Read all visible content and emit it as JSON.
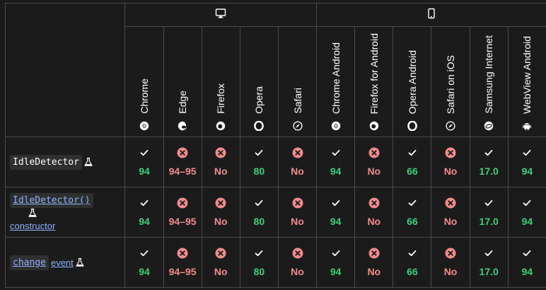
{
  "platforms": [
    {
      "name": "desktop-icon",
      "span": 5
    },
    {
      "name": "mobile-icon",
      "span": 6
    }
  ],
  "browsers": [
    {
      "label": "Chrome",
      "icon": "chrome-icon"
    },
    {
      "label": "Edge",
      "icon": "edge-icon"
    },
    {
      "label": "Firefox",
      "icon": "firefox-icon"
    },
    {
      "label": "Opera",
      "icon": "opera-icon"
    },
    {
      "label": "Safari",
      "icon": "safari-icon"
    },
    {
      "label": "Chrome Android",
      "icon": "chrome-icon"
    },
    {
      "label": "Firefox for Android",
      "icon": "firefox-icon"
    },
    {
      "label": "Opera Android",
      "icon": "opera-icon"
    },
    {
      "label": "Safari on iOS",
      "icon": "safari-icon"
    },
    {
      "label": "Samsung Internet",
      "icon": "samsung-internet-icon"
    },
    {
      "label": "WebView Android",
      "icon": "android-icon"
    }
  ],
  "features": [
    {
      "code": "IdleDetector",
      "code_link": false,
      "suffix": "",
      "support": [
        {
          "yes": true,
          "text": "94"
        },
        {
          "yes": false,
          "text": "94–95"
        },
        {
          "yes": false,
          "text": "No"
        },
        {
          "yes": true,
          "text": "80"
        },
        {
          "yes": false,
          "text": "No"
        },
        {
          "yes": true,
          "text": "94"
        },
        {
          "yes": false,
          "text": "No"
        },
        {
          "yes": true,
          "text": "66"
        },
        {
          "yes": false,
          "text": "No"
        },
        {
          "yes": true,
          "text": "17.0"
        },
        {
          "yes": true,
          "text": "94"
        }
      ]
    },
    {
      "code": "IdleDetector()",
      "code_link": true,
      "suffix": "constructor",
      "support": [
        {
          "yes": true,
          "text": "94"
        },
        {
          "yes": false,
          "text": "94–95"
        },
        {
          "yes": false,
          "text": "No"
        },
        {
          "yes": true,
          "text": "80"
        },
        {
          "yes": false,
          "text": "No"
        },
        {
          "yes": true,
          "text": "94"
        },
        {
          "yes": false,
          "text": "No"
        },
        {
          "yes": true,
          "text": "66"
        },
        {
          "yes": false,
          "text": "No"
        },
        {
          "yes": true,
          "text": "17.0"
        },
        {
          "yes": true,
          "text": "94"
        }
      ]
    },
    {
      "code": "change",
      "code_link": true,
      "suffix": "event",
      "support": [
        {
          "yes": true,
          "text": "94"
        },
        {
          "yes": false,
          "text": "94–95"
        },
        {
          "yes": false,
          "text": "No"
        },
        {
          "yes": true,
          "text": "80"
        },
        {
          "yes": false,
          "text": "No"
        },
        {
          "yes": true,
          "text": "94"
        },
        {
          "yes": false,
          "text": "No"
        },
        {
          "yes": true,
          "text": "66"
        },
        {
          "yes": false,
          "text": "No"
        },
        {
          "yes": true,
          "text": "17.0"
        },
        {
          "yes": true,
          "text": "94"
        }
      ]
    }
  ],
  "colors": {
    "supported": "#3ad07a",
    "unsupported": "#f28b8b",
    "link": "#8cb4ff"
  }
}
